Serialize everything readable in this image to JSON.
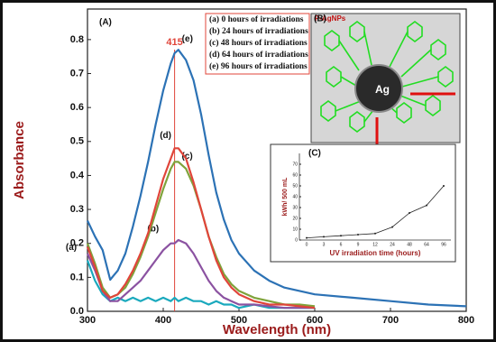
{
  "chart_data": [
    {
      "type": "line",
      "panel": "(A)",
      "x_label": "Wavelength (nm)",
      "y_label": "Absorbance",
      "x": [
        300,
        310,
        320,
        330,
        340,
        350,
        360,
        370,
        380,
        390,
        400,
        410,
        415,
        420,
        430,
        440,
        450,
        460,
        470,
        480,
        490,
        500,
        520,
        540,
        560,
        580,
        600,
        650,
        700,
        750,
        800
      ],
      "xlim": [
        300,
        800
      ],
      "xticks": [
        300,
        400,
        500,
        600,
        700,
        800
      ],
      "ylim": [
        0,
        0.89
      ],
      "yticks": [
        {
          "value": 0,
          "label": "0.0"
        },
        0.1,
        0.2,
        0.3,
        0.4,
        0.5,
        0.6,
        0.7,
        0.8
      ],
      "vline": 415,
      "vline_color": "#e0453a",
      "series": [
        {
          "name": "(a) 0 hours of irradiations",
          "label": "(a)",
          "color": "#1aa9bd",
          "values": [
            0.15,
            0.09,
            0.05,
            0.03,
            0.04,
            0.03,
            0.04,
            0.03,
            0.04,
            0.03,
            0.04,
            0.03,
            0.04,
            0.03,
            0.04,
            0.03,
            0.03,
            0.02,
            0.03,
            0.02,
            0.02,
            0.01,
            0.02,
            0.01,
            0.01,
            0.01,
            0.01,
            null,
            null,
            null,
            null
          ]
        },
        {
          "name": "(b) 24 hours of irradiations",
          "label": "(b)",
          "color": "#8b52a1",
          "values": [
            0.17,
            0.12,
            0.06,
            0.03,
            0.03,
            0.05,
            0.07,
            0.09,
            0.12,
            0.15,
            0.18,
            0.2,
            0.2,
            0.21,
            0.2,
            0.17,
            0.13,
            0.09,
            0.06,
            0.04,
            0.03,
            0.02,
            0.02,
            0.015,
            0.01,
            0.01,
            0.01,
            null,
            null,
            null,
            null
          ]
        },
        {
          "name": "(c) 48 hours of irradiations",
          "label": "(c)",
          "color": "#7fa33b",
          "values": [
            0.2,
            0.14,
            0.07,
            0.04,
            0.05,
            0.07,
            0.11,
            0.16,
            0.22,
            0.29,
            0.36,
            0.42,
            0.44,
            0.44,
            0.42,
            0.37,
            0.3,
            0.22,
            0.16,
            0.11,
            0.08,
            0.06,
            0.04,
            0.03,
            0.02,
            0.02,
            0.015,
            null,
            null,
            null,
            null
          ]
        },
        {
          "name": "(d) 64 hours of irradiations",
          "label": "(d)",
          "color": "#e0453a",
          "values": [
            0.19,
            0.13,
            0.06,
            0.04,
            0.05,
            0.08,
            0.12,
            0.17,
            0.23,
            0.31,
            0.39,
            0.45,
            0.48,
            0.48,
            0.45,
            0.38,
            0.3,
            0.22,
            0.15,
            0.1,
            0.07,
            0.05,
            0.03,
            0.02,
            0.02,
            0.015,
            0.01,
            null,
            null,
            null,
            null
          ]
        },
        {
          "name": "(e) 96 hours of irradiations",
          "label": "(e)",
          "color": "#2c72b5",
          "values": [
            0.267,
            0.22,
            0.18,
            0.093,
            0.12,
            0.17,
            0.25,
            0.34,
            0.44,
            0.55,
            0.65,
            0.73,
            0.76,
            0.77,
            0.74,
            0.68,
            0.58,
            0.46,
            0.35,
            0.27,
            0.21,
            0.17,
            0.12,
            0.09,
            0.07,
            0.06,
            0.05,
            0.04,
            0.03,
            0.02,
            0.015
          ]
        }
      ]
    },
    {
      "type": "line",
      "panel": "(C)",
      "x_label": "UV irradiation time (hours)",
      "y_label": "kWh/ 500 mL",
      "categories": [
        "0",
        "3",
        "6",
        "9",
        "12",
        "24",
        "48",
        "64",
        "96"
      ],
      "ylim": [
        0,
        80
      ],
      "yticks": [
        0,
        10,
        20,
        30,
        40,
        50,
        60,
        70
      ],
      "series": [
        {
          "name": null,
          "color": "#222222",
          "values": [
            2,
            3,
            4,
            5,
            6,
            12,
            25,
            32,
            50
          ]
        }
      ]
    }
  ],
  "diagram": {
    "panel": "(B)",
    "title": "P-AgNPs",
    "core": "Ag"
  }
}
